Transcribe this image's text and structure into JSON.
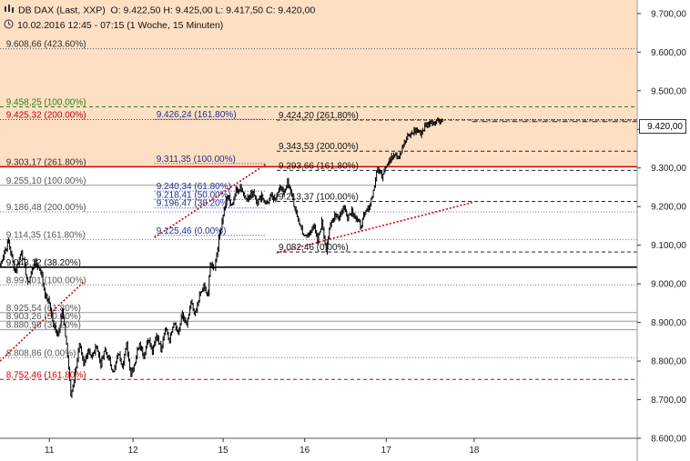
{
  "header": {
    "instrument": "DB DAX (Last, XXP)",
    "ohlc": "O: 9.422,50   H: 9.425,00   L: 9.417,50   C: 9.420,00",
    "period": "10.02.2016 12:45 - 07:15 (1 Woche, 15 Minuten)"
  },
  "last_price_label": "9.420,00",
  "colors": {
    "zone": "#fde0c4",
    "candle": "#000000",
    "red_level": "#cc0000",
    "green_level": "#2f7d1f",
    "blue_label": "#1f2f8f",
    "grid": "#9a9a9a",
    "trend": "#cc0000"
  },
  "chart_data": {
    "type": "candlestick",
    "title": "",
    "y_axis": {
      "ticks": [
        "9.700,00",
        "9.600,00",
        "9.500,00",
        "9.400,00",
        "9.300,00",
        "9.200,00",
        "9.100,00",
        "9.000,00",
        "8.900,00",
        "8.800,00",
        "8.700,00",
        "8.600,00"
      ],
      "tick_values": [
        9700,
        9600,
        9500,
        9400,
        9300,
        9200,
        9100,
        9000,
        8900,
        8800,
        8700,
        8600
      ],
      "range": [
        8600,
        9735
      ]
    },
    "x_axis": {
      "ticks": [
        "11",
        "12",
        "15",
        "16",
        "17",
        "18"
      ],
      "tick_index": [
        11,
        50,
        92,
        130,
        168,
        209
      ],
      "range": [
        -12,
        285
      ]
    },
    "highlight_zone": [
      9303.17,
      9735
    ],
    "levels": [
      {
        "label": "9.608,66 (423.60%)",
        "value": 9608.66,
        "style": "dotted",
        "color": "#555555",
        "text_color": "#333333",
        "x_from": -12,
        "x_to": 285,
        "label_x": -10
      },
      {
        "label": "9.458,25 (100.00%)",
        "value": 9458.25,
        "style": "dashed",
        "color": "#2f7d1f",
        "text_color": "#2f7d1f",
        "x_from": -12,
        "x_to": 285,
        "label_x": -10
      },
      {
        "label": "9.425,32 (200.00%)",
        "value": 9425.32,
        "style": "dotted",
        "color": "#cc0000",
        "text_color": "#cc0000",
        "x_from": -12,
        "x_to": 285,
        "label_x": -10
      },
      {
        "label": "9.426,24 (161.80%)",
        "value": 9426.24,
        "style": "dotted",
        "color": "#1f2f8f",
        "text_color": "#1f2f8f",
        "x_from": 60,
        "x_to": 112,
        "label_x": 60
      },
      {
        "label": "9.424,20 (261.80%)",
        "value": 9424.2,
        "style": "dashed",
        "color": "#222222",
        "text_color": "#111111",
        "x_from": 117,
        "x_to": 285,
        "label_x": 117
      },
      {
        "label": "9.303,17 (261.80%)",
        "value": 9303.17,
        "style": "solid",
        "color": "#cc0000",
        "text_color": "#333333",
        "x_from": -12,
        "x_to": 285,
        "label_x": -10
      },
      {
        "label": "9.311,35 (100.00%)",
        "value": 9311.35,
        "style": "dotted",
        "color": "#1f2f8f",
        "text_color": "#1f2f8f",
        "x_from": 60,
        "x_to": 112,
        "label_x": 60
      },
      {
        "label": "9.343,53 (200.00%)",
        "value": 9343.53,
        "style": "dashed",
        "color": "#222222",
        "text_color": "#111111",
        "x_from": 117,
        "x_to": 285,
        "label_x": 117
      },
      {
        "label": "9.293,66 (161.80%)",
        "value": 9293.66,
        "style": "dashed",
        "color": "#222222",
        "text_color": "#111111",
        "x_from": 117,
        "x_to": 285,
        "label_x": 117
      },
      {
        "label": "9.255,10 (100.00%)",
        "value": 9255.1,
        "style": "solid",
        "color": "#9a9a9a",
        "text_color": "#555555",
        "x_from": -12,
        "x_to": 285,
        "label_x": -10
      },
      {
        "label": "9.240,34 (61.80%)",
        "value": 9240.34,
        "style": "dotted",
        "color": "#1f2f8f",
        "text_color": "#1f2f8f",
        "x_from": 60,
        "x_to": 112,
        "label_x": 60
      },
      {
        "label": "9.218,41 (50.00%)",
        "value": 9218.41,
        "style": "dotted",
        "color": "#1f2f8f",
        "text_color": "#1f2f8f",
        "x_from": 60,
        "x_to": 112,
        "label_x": 60
      },
      {
        "label": "9.213,37 (100.00%)",
        "value": 9213.37,
        "style": "dashed",
        "color": "#222222",
        "text_color": "#111111",
        "x_from": 117,
        "x_to": 285,
        "label_x": 117
      },
      {
        "label": "9.196,47 (38.20%)",
        "value": 9196.47,
        "style": "dotted",
        "color": "#1f2f8f",
        "text_color": "#1f2f8f",
        "x_from": 60,
        "x_to": 112,
        "label_x": 60
      },
      {
        "label": "9.186,48 (200.00%)",
        "value": 9186.48,
        "style": "dotted",
        "color": "#777777",
        "text_color": "#555555",
        "x_from": -12,
        "x_to": 285,
        "label_x": -10
      },
      {
        "label": "9.125,46 (0.00%)",
        "value": 9125.46,
        "style": "dotted",
        "color": "#1f2f8f",
        "text_color": "#1f2f8f",
        "x_from": 60,
        "x_to": 112,
        "label_x": 60
      },
      {
        "label": "9.114,35 (161.80%)",
        "value": 9114.35,
        "style": "dotted",
        "color": "#777777",
        "text_color": "#555555",
        "x_from": -12,
        "x_to": 285,
        "label_x": -10
      },
      {
        "label": "9.082,46 (0.00%)",
        "value": 9082.46,
        "style": "dashed",
        "color": "#222222",
        "text_color": "#111111",
        "x_from": 117,
        "x_to": 285,
        "label_x": 117
      },
      {
        "label": "9.043,12 (38.20%)",
        "value": 9043.12,
        "style": "solid",
        "color": "#000000",
        "text_color": "#111111",
        "x_from": -12,
        "x_to": 285,
        "label_x": -10
      },
      {
        "label": "8.997,01 (100.00%)",
        "value": 8997.01,
        "style": "dotted",
        "color": "#777777",
        "text_color": "#555555",
        "x_from": -12,
        "x_to": 285,
        "label_x": -10
      },
      {
        "label": "8.925,54 (61.80%)",
        "value": 8925.54,
        "style": "solid",
        "color": "#9a9a9a",
        "text_color": "#555555",
        "x_from": -12,
        "x_to": 285,
        "label_x": -10
      },
      {
        "label": "8.903,26 (50.00%)",
        "value": 8903.26,
        "style": "solid",
        "color": "#9a9a9a",
        "text_color": "#555555",
        "x_from": -12,
        "x_to": 285,
        "label_x": -10
      },
      {
        "label": "8.880,98 (38.20%)",
        "value": 8880.98,
        "style": "solid",
        "color": "#9a9a9a",
        "text_color": "#555555",
        "x_from": -12,
        "x_to": 285,
        "label_x": -10
      },
      {
        "label": "8.808,86 (0.00%)",
        "value": 8808.86,
        "style": "dotted",
        "color": "#777777",
        "text_color": "#555555",
        "x_from": -12,
        "x_to": 285,
        "label_x": -10
      },
      {
        "label": "8.752,46 (161.80%)",
        "value": 8752.46,
        "style": "dashed",
        "color": "#cc0000",
        "text_color": "#cc0000",
        "x_from": -12,
        "x_to": 285,
        "label_x": -10
      },
      {
        "label": "",
        "value": 9420.0,
        "style": "dashdot",
        "color": "#222222",
        "text_color": "#111111",
        "x_from": 208,
        "x_to": 285,
        "label_x": 208
      }
    ],
    "trendlines": [
      {
        "points": [
          [
            -12,
            8800
          ],
          [
            27,
            9005
          ]
        ],
        "color": "#cc0000"
      },
      {
        "points": [
          [
            60,
            9120
          ],
          [
            112,
            9310
          ]
        ],
        "color": "#cc0000"
      },
      {
        "points": [
          [
            117,
            9080
          ],
          [
            209,
            9212
          ]
        ],
        "color": "#cc0000"
      }
    ],
    "series": [
      {
        "type": "close_path",
        "anchors": [
          [
            -12,
            9050
          ],
          [
            -8,
            9110
          ],
          [
            -5,
            9030
          ],
          [
            -2,
            9085
          ],
          [
            1,
            9000
          ],
          [
            4,
            9055
          ],
          [
            7,
            9035
          ],
          [
            9,
            8970
          ],
          [
            11,
            8950
          ],
          [
            13,
            8890
          ],
          [
            15,
            8870
          ],
          [
            17,
            8930
          ],
          [
            19,
            8845
          ],
          [
            20,
            8780
          ],
          [
            21,
            8710
          ],
          [
            23,
            8770
          ],
          [
            25,
            8840
          ],
          [
            27,
            8790
          ],
          [
            29,
            8830
          ],
          [
            31,
            8810
          ],
          [
            33,
            8840
          ],
          [
            35,
            8790
          ],
          [
            37,
            8830
          ],
          [
            39,
            8800
          ],
          [
            41,
            8770
          ],
          [
            43,
            8820
          ],
          [
            45,
            8790
          ],
          [
            47,
            8840
          ],
          [
            49,
            8770
          ],
          [
            51,
            8800
          ],
          [
            53,
            8850
          ],
          [
            55,
            8810
          ],
          [
            57,
            8860
          ],
          [
            59,
            8820
          ],
          [
            61,
            8870
          ],
          [
            63,
            8830
          ],
          [
            65,
            8890
          ],
          [
            67,
            8850
          ],
          [
            69,
            8900
          ],
          [
            71,
            8870
          ],
          [
            73,
            8920
          ],
          [
            75,
            8890
          ],
          [
            77,
            8950
          ],
          [
            79,
            8920
          ],
          [
            81,
            8970
          ],
          [
            83,
            8990
          ],
          [
            85,
            8975
          ],
          [
            86,
            9050
          ],
          [
            88,
            9045
          ],
          [
            90,
            9115
          ],
          [
            92,
            9180
          ],
          [
            94,
            9230
          ],
          [
            96,
            9200
          ],
          [
            98,
            9240
          ],
          [
            100,
            9250
          ],
          [
            102,
            9230
          ],
          [
            104,
            9220
          ],
          [
            106,
            9240
          ],
          [
            108,
            9210
          ],
          [
            110,
            9230
          ],
          [
            112,
            9205
          ],
          [
            114,
            9225
          ],
          [
            116,
            9215
          ],
          [
            118,
            9250
          ],
          [
            120,
            9235
          ],
          [
            122,
            9260
          ],
          [
            124,
            9230
          ],
          [
            126,
            9180
          ],
          [
            128,
            9150
          ],
          [
            130,
            9120
          ],
          [
            132,
            9130
          ],
          [
            134,
            9150
          ],
          [
            136,
            9110
          ],
          [
            138,
            9160
          ],
          [
            140,
            9090
          ],
          [
            142,
            9150
          ],
          [
            144,
            9180
          ],
          [
            146,
            9170
          ],
          [
            148,
            9200
          ],
          [
            150,
            9175
          ],
          [
            152,
            9190
          ],
          [
            154,
            9170
          ],
          [
            156,
            9150
          ],
          [
            158,
            9180
          ],
          [
            160,
            9200
          ],
          [
            162,
            9240
          ],
          [
            164,
            9300
          ],
          [
            166,
            9280
          ],
          [
            168,
            9310
          ],
          [
            170,
            9320
          ],
          [
            172,
            9340
          ],
          [
            174,
            9330
          ],
          [
            176,
            9360
          ],
          [
            178,
            9380
          ],
          [
            180,
            9390
          ],
          [
            182,
            9400
          ],
          [
            184,
            9390
          ],
          [
            186,
            9405
          ],
          [
            188,
            9415
          ],
          [
            190,
            9420
          ],
          [
            192,
            9425
          ],
          [
            194,
            9420
          ]
        ]
      }
    ]
  }
}
